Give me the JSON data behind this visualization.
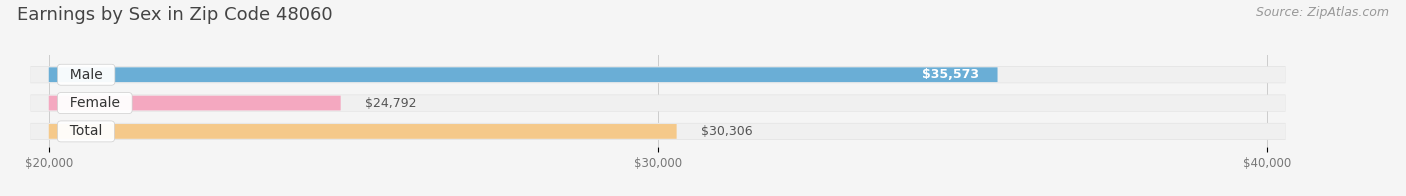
{
  "title": "Earnings by Sex in Zip Code 48060",
  "source": "Source: ZipAtlas.com",
  "categories": [
    "Male",
    "Female",
    "Total"
  ],
  "values": [
    35573,
    24792,
    30306
  ],
  "bar_colors": [
    "#6aaed6",
    "#f4a8c0",
    "#f5c98a"
  ],
  "bar_bg_color": "#ebebeb",
  "value_labels": [
    "$35,573",
    "$24,792",
    "$30,306"
  ],
  "value_label_inside": [
    true,
    false,
    false
  ],
  "xmin": 20000,
  "xmax": 40000,
  "xticks": [
    20000,
    30000,
    40000
  ],
  "xtick_labels": [
    "$20,000",
    "$30,000",
    "$40,000"
  ],
  "background_color": "#f5f5f5",
  "title_fontsize": 13,
  "bar_label_fontsize": 10,
  "value_label_fontsize": 9,
  "source_fontsize": 9
}
